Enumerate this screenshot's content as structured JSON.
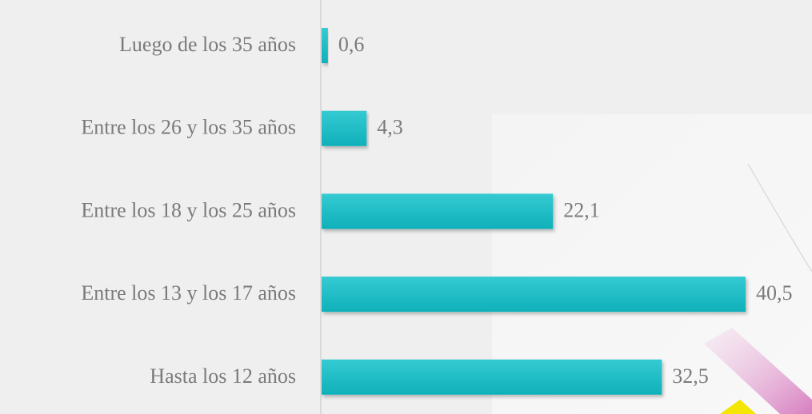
{
  "chart_data": {
    "type": "bar",
    "categories": [
      "Luego de los 35 años",
      "Entre los 26 y los 35 años",
      "Entre los 18 y los 25 años",
      "Entre los 13 y los 17 años",
      "Hasta los 12 años"
    ],
    "values": [
      0.6,
      4.3,
      22.1,
      40.5,
      32.5
    ],
    "value_labels": [
      "0,6",
      "4,3",
      "22,1",
      "40,5",
      "32,5"
    ],
    "color": "#19bac4"
  }
}
